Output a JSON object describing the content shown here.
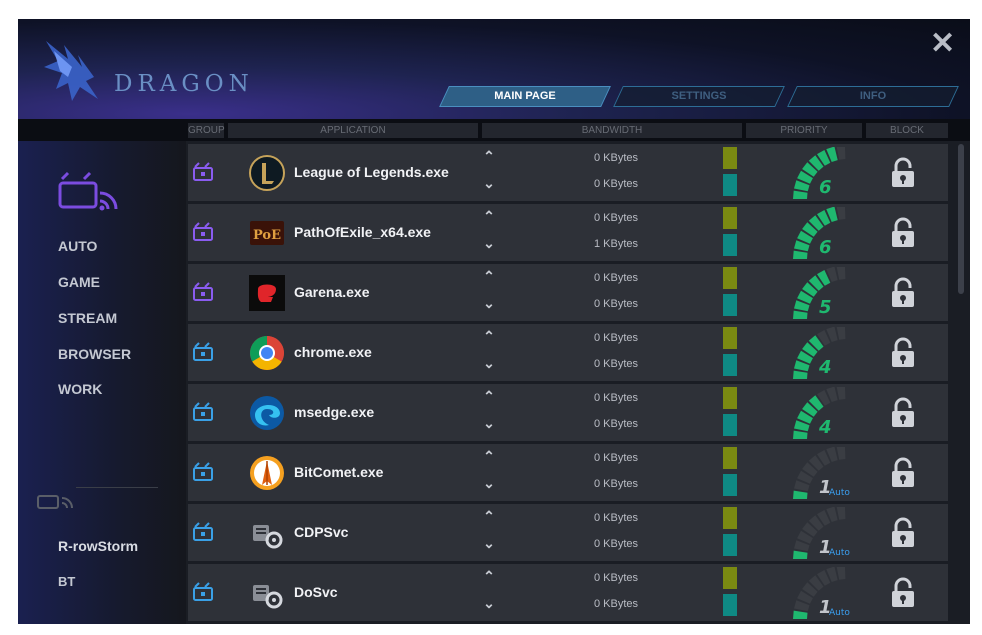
{
  "app": {
    "brand": "DRAGON",
    "close": "✕"
  },
  "tabs": [
    {
      "label": "MAIN PAGE",
      "active": true
    },
    {
      "label": "SETTINGS",
      "active": false
    },
    {
      "label": "INFO",
      "active": false
    }
  ],
  "columns": {
    "group": "GROUP",
    "application": "APPLICATION",
    "bandwidth": "BANDWIDTH",
    "priority": "PRIORITY",
    "block": "BLOCK"
  },
  "sidebar": {
    "items": [
      "AUTO",
      "GAME",
      "STREAM",
      "BROWSER",
      "WORK"
    ],
    "devices": [
      "R-rowStorm",
      "BT"
    ]
  },
  "rows": [
    {
      "app": "League of Legends.exe",
      "up": "0 KBytes",
      "down": "0 KBytes",
      "priority": "6",
      "auto": "",
      "level": 6,
      "icon": "lol-icon"
    },
    {
      "app": "PathOfExile_x64.exe",
      "up": "0 KBytes",
      "down": "1 KBytes",
      "priority": "6",
      "auto": "",
      "level": 6,
      "icon": "poe-icon"
    },
    {
      "app": "Garena.exe",
      "up": "0 KBytes",
      "down": "0 KBytes",
      "priority": "5",
      "auto": "",
      "level": 5,
      "icon": "garena-icon"
    },
    {
      "app": "chrome.exe",
      "up": "0 KBytes",
      "down": "0 KBytes",
      "priority": "4",
      "auto": "",
      "level": 4,
      "icon": "chrome-icon"
    },
    {
      "app": "msedge.exe",
      "up": "0 KBytes",
      "down": "0 KBytes",
      "priority": "4",
      "auto": "",
      "level": 4,
      "icon": "edge-icon"
    },
    {
      "app": "BitComet.exe",
      "up": "0 KBytes",
      "down": "0 KBytes",
      "priority": "1",
      "auto": "Auto",
      "level": 1,
      "icon": "bitcomet-icon"
    },
    {
      "app": "CDPSvc",
      "up": "0 KBytes",
      "down": "0 KBytes",
      "priority": "1",
      "auto": "Auto",
      "level": 1,
      "icon": "service-gear-icon"
    },
    {
      "app": "DoSvc",
      "up": "0 KBytes",
      "down": "0 KBytes",
      "priority": "1",
      "auto": "Auto",
      "level": 1,
      "icon": "service-gear-icon"
    }
  ],
  "colors": {
    "accent": "#2e5f86",
    "upload_bar": "#7a8a12",
    "download_bar": "#0f8a84",
    "gauge_on": "#1fb86f",
    "gauge_off": "#3a3d43"
  }
}
